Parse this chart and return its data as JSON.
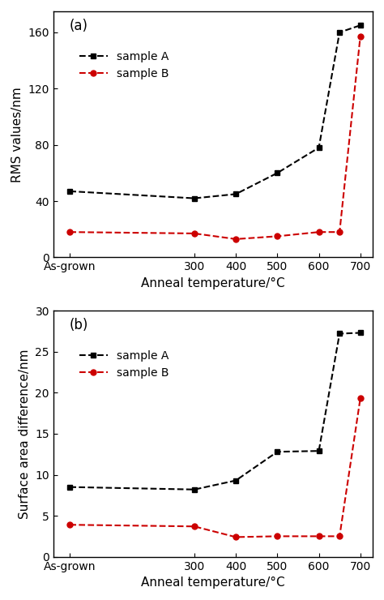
{
  "x_ticks_positions": [
    0,
    300,
    400,
    500,
    600,
    700
  ],
  "x_tick_labels": [
    "As-grown",
    "300",
    "400",
    "500",
    "600",
    "700"
  ],
  "plot_a": {
    "title": "(a)",
    "ylabel": "RMS values/nm",
    "xlabel": "Anneal temperature/°C",
    "ylim": [
      0,
      175
    ],
    "yticks": [
      0,
      40,
      80,
      120,
      160
    ],
    "sample_A_x": [
      0,
      300,
      400,
      500,
      600,
      650,
      700
    ],
    "sample_A_y": [
      47,
      42,
      45,
      60,
      78,
      160,
      165
    ],
    "sample_B_x": [
      0,
      300,
      400,
      500,
      600,
      650,
      700
    ],
    "sample_B_y": [
      18,
      17,
      13,
      15,
      18,
      18,
      157
    ]
  },
  "plot_b": {
    "title": "(b)",
    "ylabel": "Surface area difference/nm",
    "xlabel": "Anneal temperature/°C",
    "ylim": [
      0,
      30
    ],
    "yticks": [
      0,
      5,
      10,
      15,
      20,
      25,
      30
    ],
    "sample_A_x": [
      0,
      300,
      400,
      500,
      600,
      650,
      700
    ],
    "sample_A_y": [
      8.5,
      8.2,
      9.3,
      12.8,
      12.9,
      27.2,
      27.3
    ],
    "sample_B_x": [
      0,
      300,
      400,
      500,
      600,
      650,
      700
    ],
    "sample_B_y": [
      3.9,
      3.7,
      2.4,
      2.5,
      2.5,
      2.5,
      19.3
    ]
  },
  "xlim": [
    -40,
    730
  ],
  "color_A": "#000000",
  "color_B": "#cc0000",
  "marker_A": "s",
  "marker_B": "o",
  "linestyle": "--",
  "linewidth": 1.5,
  "markersize": 5,
  "legend_fontsize": 10,
  "label_fontsize": 11,
  "tick_fontsize": 10,
  "panel_label_fontsize": 12
}
